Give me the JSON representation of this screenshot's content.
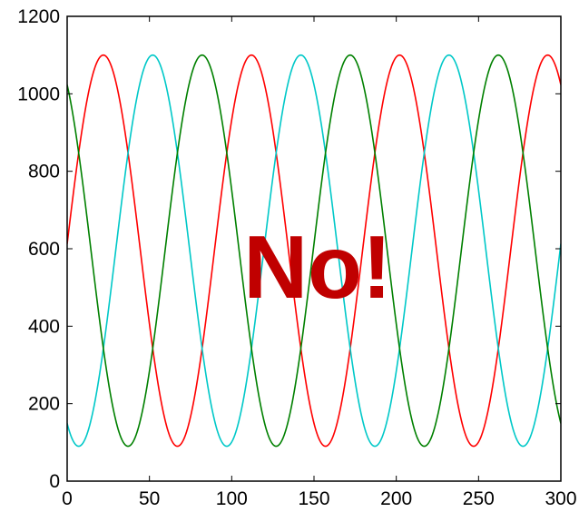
{
  "chart_data": {
    "type": "line",
    "title": "",
    "xlabel": "",
    "ylabel": "",
    "xlim": [
      0,
      300
    ],
    "ylim": [
      0,
      1200
    ],
    "x_ticks": [
      0,
      50,
      100,
      150,
      200,
      250,
      300
    ],
    "y_ticks": [
      0,
      200,
      400,
      600,
      800,
      1000,
      1200
    ],
    "grid": false,
    "legend": "none",
    "series_model": "y = 595 + 505 * sin(2*pi*x/90 + phase)",
    "series": [
      {
        "color": "#ff0000",
        "period": 90,
        "min": 90,
        "max": 1100,
        "start_value": 500,
        "first_peak_x": 22
      },
      {
        "color": "#00c8c8",
        "period": 90,
        "min": 90,
        "max": 1100,
        "start_value": 100,
        "first_peak_x": 52
      },
      {
        "color": "#008000",
        "period": 90,
        "min": 90,
        "max": 1100,
        "start_value": 890,
        "first_peak_x": 82
      }
    ],
    "annotation": "No!"
  }
}
